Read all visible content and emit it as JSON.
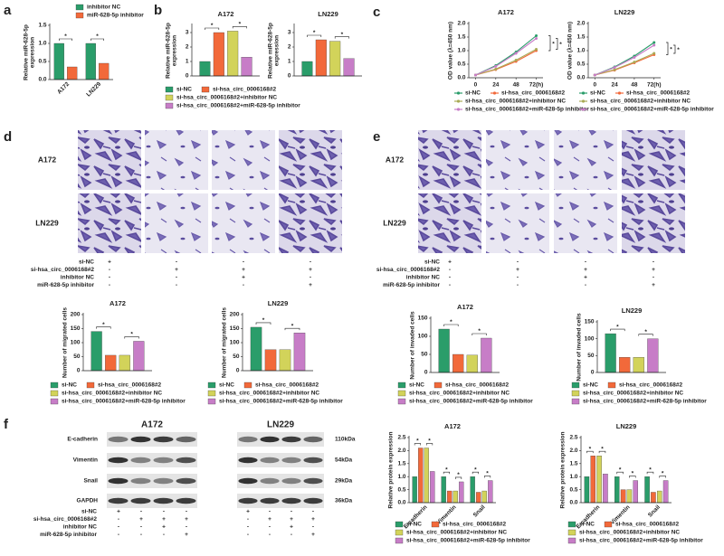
{
  "panel_labels": [
    "a",
    "b",
    "c",
    "d",
    "e",
    "f"
  ],
  "chart_data": [
    {
      "type": "bar",
      "y_label": [
        "Relative miR-628-5p",
        "expression"
      ],
      "categories": [
        "A172",
        "LN229"
      ],
      "series": [
        {
          "name": "inhibitor NC",
          "color": "#2a9d6a",
          "values": [
            1.0,
            1.0
          ]
        },
        {
          "name": "miR-628-5p inhibitor",
          "color": "#f2693a",
          "values": [
            0.35,
            0.45
          ]
        }
      ],
      "ylim": [
        0,
        1.5
      ],
      "yticks": [
        {
          "value": 0,
          "label": "0.0"
        },
        0.5,
        {
          "value": 1,
          "label": "1.0"
        },
        1.5
      ],
      "significance": "*"
    },
    {
      "type": "bar",
      "title": "A172",
      "y_label": [
        "Relative miR-628-5p",
        "expression"
      ],
      "categories": [
        null
      ],
      "series": [
        {
          "name": "si-NC",
          "color": "#2a9d6a",
          "values": [
            1.0
          ]
        },
        {
          "name": "si-hsa_circ_0006168#2",
          "color": "#f2693a",
          "values": [
            3.0
          ]
        },
        {
          "name": "si-hsa_circ_0006168#2+inhibitor NC",
          "color": "#d2d35a",
          "values": [
            3.1
          ]
        },
        {
          "name": "si-hsa_circ_0006168#2+miR-628-5p inhibitor",
          "color": "#c77dc7",
          "values": [
            1.3
          ]
        }
      ],
      "ylim": [
        0,
        3.5
      ],
      "yticks": [
        0,
        1,
        2,
        3
      ],
      "significance": "*"
    },
    {
      "type": "bar",
      "title": "LN229",
      "y_label": [
        "Relative miR-628-5p",
        "expression"
      ],
      "categories": [
        null
      ],
      "series": [
        {
          "values": [
            1.0
          ]
        },
        {
          "values": [
            2.5
          ]
        },
        {
          "values": [
            2.4
          ]
        },
        {
          "values": [
            1.2
          ]
        }
      ],
      "ylim": [
        0,
        3.5
      ],
      "yticks": [
        0,
        1,
        2,
        3
      ],
      "significance": "*"
    },
    {
      "type": "line",
      "title": "A172",
      "y_label": "OD value (λ=450 nm)",
      "x": [
        0,
        24,
        48,
        72
      ],
      "xticks": [
        0,
        24,
        48,
        {
          "value": 72,
          "label": "72(h)"
        }
      ],
      "xlim": [
        -8,
        80
      ],
      "series": [
        {
          "name": "si-NC",
          "color": "#2a9d6a",
          "values": [
            0.1,
            0.45,
            0.95,
            1.55
          ]
        },
        {
          "name": "si-hsa_circ_0006168#2",
          "color": "#f2693a",
          "values": [
            0.1,
            0.3,
            0.6,
            1.0
          ]
        },
        {
          "name": "si-hsa_circ_0006168#2+inhibitor NC",
          "color": "#a9aa55",
          "values": [
            0.1,
            0.32,
            0.65,
            1.05
          ]
        },
        {
          "name": "si-hsa_circ_0006168#2+miR-628-5p inhibitor",
          "color": "#c77dc7",
          "values": [
            0.1,
            0.42,
            0.9,
            1.45
          ]
        }
      ],
      "ylim": [
        0,
        2
      ],
      "yticks": [
        {
          "value": 0,
          "label": "0.0"
        },
        0.5,
        {
          "value": 1,
          "label": "1.0"
        },
        1.5,
        {
          "value": 2,
          "label": "2.0"
        }
      ],
      "significance": "*"
    },
    {
      "type": "line",
      "title": "LN229",
      "y_label": "OD value (λ=450 nm)",
      "x": [
        0,
        24,
        48,
        72
      ],
      "xticks": [
        0,
        24,
        48,
        {
          "value": 72,
          "label": "72(h)"
        }
      ],
      "xlim": [
        -8,
        80
      ],
      "series": [
        {
          "name": "si-NC",
          "color": "#2a9d6a",
          "values": [
            0.1,
            0.4,
            0.8,
            1.3
          ]
        },
        {
          "name": "si-hsa_circ_0006168#2",
          "color": "#f2693a",
          "values": [
            0.1,
            0.28,
            0.55,
            0.85
          ]
        },
        {
          "name": "si-hsa_circ_0006168#2+inhibitor NC",
          "color": "#a9aa55",
          "values": [
            0.1,
            0.3,
            0.58,
            0.9
          ]
        },
        {
          "name": "si-hsa_circ_0006168#2+miR-628-5p inhibitor",
          "color": "#c77dc7",
          "values": [
            0.1,
            0.38,
            0.75,
            1.2
          ]
        }
      ],
      "ylim": [
        0,
        2
      ],
      "yticks": [
        {
          "value": 0,
          "label": "0.0"
        },
        0.5,
        {
          "value": 1,
          "label": "1.0"
        },
        1.5,
        {
          "value": 2,
          "label": "2.0"
        }
      ],
      "significance": "*"
    },
    {
      "type": "bar",
      "title": "A172",
      "y_label": "Number of migrated cells",
      "categories": [
        null
      ],
      "series": [
        {
          "name": "si-NC",
          "color": "#2a9d6a",
          "values": [
            140
          ]
        },
        {
          "name": "si-hsa_circ_0006168#2",
          "color": "#f2693a",
          "values": [
            55
          ]
        },
        {
          "name": "si-hsa_circ_0006168#2+inhibitor NC",
          "color": "#d2d35a",
          "values": [
            55
          ]
        },
        {
          "name": "si-hsa_circ_0006168#2+miR-628-5p inhibitor",
          "color": "#c77dc7",
          "values": [
            105
          ]
        }
      ],
      "ylim": [
        0,
        200
      ],
      "yticks": [
        0,
        50,
        100,
        150,
        200
      ],
      "significance": "*"
    },
    {
      "type": "bar",
      "title": "LN229",
      "y_label": "Number of migrated cells",
      "categories": [
        null
      ],
      "series": [
        {
          "name": "si-NC",
          "color": "#2a9d6a",
          "values": [
            155
          ]
        },
        {
          "name": "si-hsa_circ_0006168#2",
          "color": "#f2693a",
          "values": [
            75
          ]
        },
        {
          "name": "si-hsa_circ_0006168#2+inhibitor NC",
          "color": "#d2d35a",
          "values": [
            75
          ]
        },
        {
          "name": "si-hsa_circ_0006168#2+miR-628-5p inhibitor",
          "color": "#c77dc7",
          "values": [
            135
          ]
        }
      ],
      "ylim": [
        0,
        200
      ],
      "yticks": [
        0,
        50,
        100,
        150,
        200
      ],
      "significance": "*"
    },
    {
      "type": "bar",
      "title": "A172",
      "y_label": "Number of invaded cells",
      "categories": [
        null
      ],
      "series": [
        {
          "name": "si-NC",
          "color": "#2a9d6a",
          "values": [
            120
          ]
        },
        {
          "name": "si-hsa_circ_0006168#2",
          "color": "#f2693a",
          "values": [
            50
          ]
        },
        {
          "name": "si-hsa_circ_0006168#2+inhibitor NC",
          "color": "#d2d35a",
          "values": [
            48
          ]
        },
        {
          "name": "si-hsa_circ_0006168#2+miR-628-5p inhibitor",
          "color": "#c77dc7",
          "values": [
            95
          ]
        }
      ],
      "ylim": [
        0,
        150
      ],
      "yticks": [
        0,
        50,
        100,
        150
      ],
      "significance": "*"
    },
    {
      "type": "bar",
      "title": "LN229",
      "y_label": "Number of invaded cells",
      "categories": [
        null
      ],
      "series": [
        {
          "name": "si-NC",
          "color": "#2a9d6a",
          "values": [
            115
          ]
        },
        {
          "name": "si-hsa_circ_0006168#2",
          "color": "#f2693a",
          "values": [
            45
          ]
        },
        {
          "name": "si-hsa_circ_0006168#2+inhibitor NC",
          "color": "#d2d35a",
          "values": [
            45
          ]
        },
        {
          "name": "si-hsa_circ_0006168#2+miR-628-5p inhibitor",
          "color": "#c77dc7",
          "values": [
            100
          ]
        }
      ],
      "ylim": [
        0,
        150
      ],
      "yticks": [
        0,
        50,
        100,
        150
      ],
      "significance": "*"
    },
    {
      "type": "bar",
      "title": "A172",
      "y_label": "Relative protein expression",
      "categories": [
        "E-cadherin",
        "Vimentin",
        "Snail"
      ],
      "series": [
        {
          "name": "si-NC",
          "color": "#2a9d6a",
          "values": [
            1.0,
            1.0,
            1.0
          ]
        },
        {
          "name": "si-hsa_circ_0006168#2",
          "color": "#f2693a",
          "values": [
            2.1,
            0.45,
            0.4
          ]
        },
        {
          "name": "si-hsa_circ_0006168#2+inhibitor NC",
          "color": "#d2d35a",
          "values": [
            2.1,
            0.45,
            0.45
          ]
        },
        {
          "name": "si-hsa_circ_0006168#2+miR-628-5p inhibitor",
          "color": "#c77dc7",
          "values": [
            1.2,
            0.8,
            0.85
          ]
        }
      ],
      "ylim": [
        0,
        2.5
      ],
      "yticks": [
        {
          "value": 0,
          "label": "0.0"
        },
        0.5,
        {
          "value": 1,
          "label": "1.0"
        },
        1.5,
        {
          "value": 2,
          "label": "2.0"
        },
        2.5
      ],
      "significance": "*"
    },
    {
      "type": "bar",
      "title": "LN229",
      "y_label": "Relative protein expression",
      "categories": [
        "E-cadherin",
        "Vimentin",
        "Snail"
      ],
      "series": [
        {
          "name": "si-NC",
          "color": "#2a9d6a",
          "values": [
            1.0,
            1.0,
            1.0
          ]
        },
        {
          "name": "si-hsa_circ_0006168#2",
          "color": "#f2693a",
          "values": [
            1.8,
            0.5,
            0.4
          ]
        },
        {
          "name": "si-hsa_circ_0006168#2+inhibitor NC",
          "color": "#d2d35a",
          "values": [
            1.8,
            0.5,
            0.45
          ]
        },
        {
          "name": "si-hsa_circ_0006168#2+miR-628-5p inhibitor",
          "color": "#c77dc7",
          "values": [
            1.1,
            0.85,
            0.85
          ]
        }
      ],
      "ylim": [
        0,
        2.5
      ],
      "yticks": [
        {
          "value": 0,
          "label": "0.0"
        },
        0.5,
        {
          "value": 1,
          "label": "1.0"
        },
        1.5,
        {
          "value": 2,
          "label": "2.0"
        },
        2.5
      ],
      "significance": "*"
    }
  ],
  "micrographs": [
    {
      "rows": [
        "A172",
        "LN229"
      ]
    },
    {
      "rows": [
        "A172",
        "LN229"
      ]
    }
  ],
  "condition_tables": [
    {
      "rows": [
        {
          "label": "si-NC",
          "signs": [
            "+",
            "-",
            "-",
            "-"
          ]
        },
        {
          "label": "si-hsa_circ_0006168#2",
          "signs": [
            "-",
            "+",
            "+",
            "+"
          ]
        },
        {
          "label": "inhibitor NC",
          "signs": [
            "-",
            "-",
            "+",
            "-"
          ]
        },
        {
          "label": "miR-628-5p inhibitor",
          "signs": [
            "-",
            "-",
            "-",
            "+"
          ]
        }
      ]
    },
    {
      "rows": [
        {
          "label": "si-NC",
          "signs": [
            "+",
            "-",
            "-",
            "-"
          ]
        },
        {
          "label": "si-hsa_circ_0006168#2",
          "signs": [
            "-",
            "+",
            "+",
            "+"
          ]
        },
        {
          "label": "inhibitor NC",
          "signs": [
            "-",
            "-",
            "+",
            "-"
          ]
        },
        {
          "label": "miR-628-5p inhibitor",
          "signs": [
            "-",
            "-",
            "-",
            "+"
          ]
        }
      ]
    },
    {
      "rows": [
        {
          "label": "si-NC",
          "signs": [
            "+",
            "-",
            "-",
            "-"
          ]
        },
        {
          "label": "si-hsa_circ_0006168#2",
          "signs": [
            "-",
            "+",
            "+",
            "+"
          ]
        },
        {
          "label": "inhibitor NC",
          "signs": [
            "-",
            "-",
            "+",
            "-"
          ]
        },
        {
          "label": "miR-628-5p inhibitor",
          "signs": [
            "-",
            "-",
            "-",
            "+"
          ]
        }
      ]
    }
  ],
  "western_blot": {
    "cell_lines": [
      "A172",
      "LN229"
    ],
    "proteins": [
      "E-cadherin",
      "Vimentin",
      "Snail",
      "GAPDH"
    ],
    "sizes": [
      "110kDa",
      "54kDa",
      "29kDa",
      "36kDa"
    ]
  }
}
